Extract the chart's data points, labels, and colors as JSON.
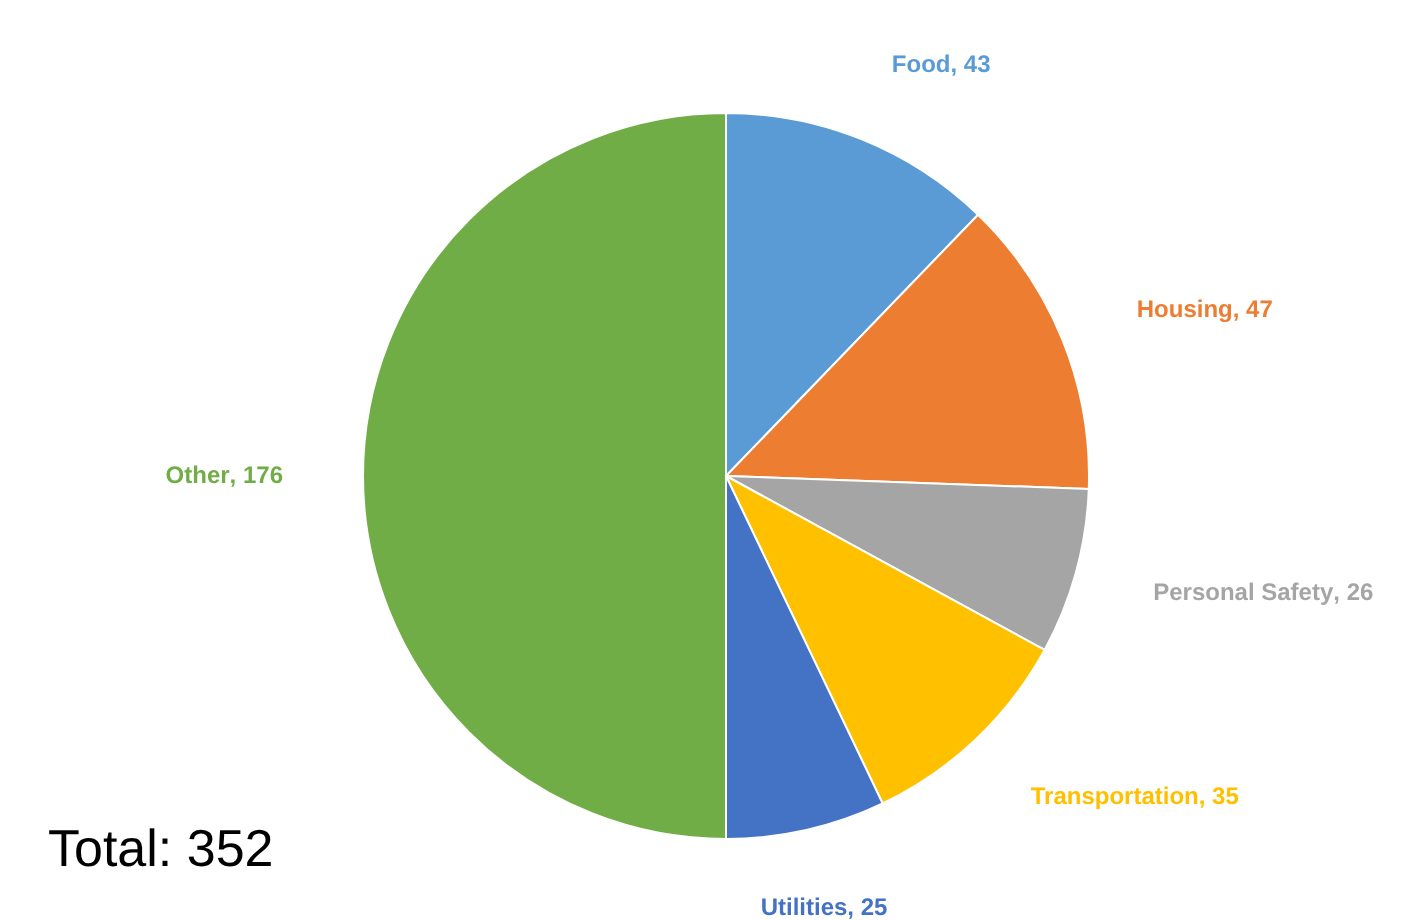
{
  "chart_data": {
    "type": "pie",
    "categories": [
      "Food",
      "Housing",
      "Personal Safety",
      "Transportation",
      "Utilities",
      "Other"
    ],
    "values": [
      43,
      47,
      26,
      35,
      25,
      176
    ],
    "colors": [
      "#5b9bd5",
      "#ed7d31",
      "#a5a5a5",
      "#ffc000",
      "#4472c4",
      "#70ad47"
    ],
    "value_labels": [
      ", 43",
      ", 47",
      ", 26",
      ", 35",
      ", 25",
      ", 176"
    ],
    "legend": false,
    "annotations": [
      "Total: 352"
    ]
  }
}
